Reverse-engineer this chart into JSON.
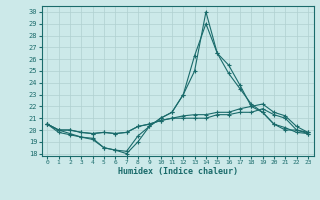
{
  "xlabel": "Humidex (Indice chaleur)",
  "bg_color": "#cce9e9",
  "line_color": "#1a6b6b",
  "grid_color": "#b0d0d0",
  "xlim": [
    -0.5,
    23.5
  ],
  "ylim": [
    17.8,
    30.5
  ],
  "yticks": [
    18,
    19,
    20,
    21,
    22,
    23,
    24,
    25,
    26,
    27,
    28,
    29,
    30
  ],
  "xticks": [
    0,
    1,
    2,
    3,
    4,
    5,
    6,
    7,
    8,
    9,
    10,
    11,
    12,
    13,
    14,
    15,
    16,
    17,
    18,
    19,
    20,
    21,
    22,
    23
  ],
  "series": [
    [
      20.5,
      20.0,
      19.7,
      19.4,
      19.3,
      18.5,
      18.3,
      18.0,
      19.0,
      20.3,
      21.0,
      21.5,
      23.0,
      25.0,
      30.0,
      26.5,
      25.5,
      23.8,
      22.0,
      21.5,
      20.5,
      20.0,
      20.0,
      19.8
    ],
    [
      20.5,
      19.8,
      19.6,
      19.4,
      19.2,
      18.5,
      18.3,
      18.2,
      19.5,
      20.3,
      21.0,
      21.5,
      23.0,
      26.3,
      29.0,
      26.5,
      24.8,
      23.5,
      22.2,
      21.5,
      20.5,
      20.2,
      19.8,
      19.7
    ],
    [
      20.5,
      20.0,
      20.0,
      19.8,
      19.7,
      19.8,
      19.7,
      19.8,
      20.3,
      20.5,
      20.8,
      21.0,
      21.2,
      21.3,
      21.3,
      21.5,
      21.5,
      21.8,
      22.0,
      22.2,
      21.5,
      21.2,
      20.3,
      19.8
    ],
    [
      20.5,
      20.0,
      20.0,
      19.8,
      19.7,
      19.8,
      19.7,
      19.8,
      20.3,
      20.5,
      20.8,
      21.0,
      21.0,
      21.0,
      21.0,
      21.3,
      21.3,
      21.5,
      21.5,
      21.8,
      21.3,
      21.0,
      20.0,
      19.7
    ]
  ]
}
